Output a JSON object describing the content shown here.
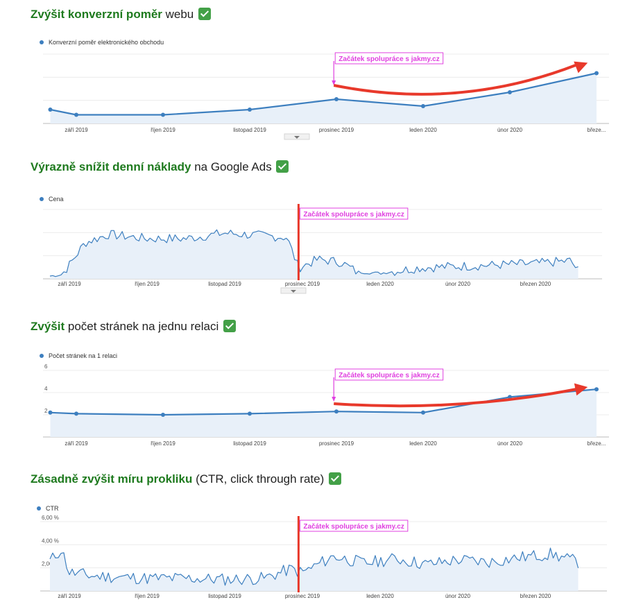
{
  "colors": {
    "heading_green": "#1e7a1e",
    "series_blue": "#3d7fbf",
    "area_fill": "#e8f0f9",
    "annotation_magenta": "#e040e0",
    "arrow_red": "#e8392b",
    "check_green": "#43a047"
  },
  "sections": [
    {
      "heading_bold": "Zvýšit konverzní poměr",
      "heading_rest": " webu",
      "check_icon": "check-mark-icon"
    },
    {
      "heading_bold": "Výrazně snížit denní náklady",
      "heading_rest": " na Google Ads",
      "check_icon": "check-mark-icon"
    },
    {
      "heading_bold": "Zvýšit",
      "heading_rest": " počet stránek na jednu relaci",
      "check_icon": "check-mark-icon"
    },
    {
      "heading_bold": "Zásadně zvýšit míru prokliku",
      "heading_rest": " (CTR, click through rate)",
      "check_icon": "check-mark-icon"
    }
  ],
  "chart_data": [
    {
      "type": "line",
      "legend": "Konverzní poměr elektronického obchodu",
      "legend_placement": "top-left",
      "x_labels": [
        "září 2019",
        "říjen 2019",
        "listopad 2019",
        "prosinec 2019",
        "leden 2020",
        "únor 2020",
        "březe..."
      ],
      "series": [
        {
          "name": "Konverzní poměr elektronického obchodu",
          "x": [
            -0.3,
            0,
            1,
            2,
            3,
            4,
            5,
            6
          ],
          "values": [
            0.8,
            0.5,
            0.5,
            0.8,
            1.4,
            1.0,
            1.8,
            2.9
          ]
        }
      ],
      "ylim": [
        0,
        4
      ],
      "y_ticks": [],
      "annotation": {
        "text": "Začátek spolupráce s jakmy.cz",
        "at_x": 2.97,
        "type": "arrow-down"
      },
      "trend_arrow": {
        "from_x": 2.97,
        "to_x": 5.85,
        "values": [
          2.2,
          1.8,
          3.5
        ]
      },
      "grid": true,
      "scroll_indicator": true
    },
    {
      "type": "area",
      "legend": "Cena",
      "legend_placement": "top-left",
      "x_labels": [
        "září 2019",
        "říjen 2019",
        "listopad 2019",
        "prosinec 2019",
        "leden 2020",
        "únor 2020",
        "březen 2020"
      ],
      "series": [
        {
          "name": "Cena",
          "noisy": true,
          "seed": 7,
          "x": [
            -0.25,
            -0.1,
            0.0,
            0.2,
            0.5,
            1.0,
            1.5,
            2.0,
            2.5,
            2.8,
            2.95,
            3.2,
            3.5,
            3.7,
            4.0,
            4.5,
            5.0,
            5.5,
            6.0,
            6.45,
            6.55
          ],
          "values": [
            0.2,
            0.3,
            1.0,
            2.6,
            3.2,
            2.9,
            2.9,
            3.3,
            3.1,
            3.0,
            0.8,
            1.4,
            1.2,
            0.5,
            0.4,
            0.8,
            0.9,
            1.0,
            1.1,
            1.3,
            0.6
          ],
          "noise": 0.35
        }
      ],
      "ylim": [
        0,
        5
      ],
      "y_ticks": [],
      "annotation": {
        "text": "Začátek spolupráce s jakmy.cz",
        "at_x": 2.95,
        "type": "red-line"
      },
      "grid": true,
      "scroll_indicator": true
    },
    {
      "type": "line",
      "legend": "Počet stránek na 1 relaci",
      "legend_placement": "top-left",
      "x_labels": [
        "září 2019",
        "říjen 2019",
        "listopad 2019",
        "prosinec 2019",
        "leden 2020",
        "únor 2020",
        "březe..."
      ],
      "series": [
        {
          "name": "Počet stránek na 1 relaci",
          "x": [
            -0.3,
            0,
            1,
            2,
            3,
            4,
            5,
            6
          ],
          "values": [
            2.2,
            2.1,
            2.0,
            2.1,
            2.3,
            2.2,
            3.6,
            4.3
          ]
        }
      ],
      "ylim": [
        0,
        6
      ],
      "y_ticks": [
        "2",
        "4",
        "6"
      ],
      "annotation": {
        "text": "Začátek spolupráce s jakmy.cz",
        "at_x": 2.97,
        "type": "arrow-down"
      },
      "trend_arrow": {
        "from_x": 2.97,
        "to_x": 5.85,
        "values": [
          3.0,
          3.0,
          4.5
        ]
      },
      "grid": true,
      "scroll_indicator": false
    },
    {
      "type": "area",
      "legend": "CTR",
      "legend_placement": "top-left",
      "x_labels": [
        "září 2019",
        "říjen 2019",
        "listopad 2019",
        "prosinec 2019",
        "leden 2020",
        "únor 2020",
        "březen 2020"
      ],
      "series": [
        {
          "name": "CTR",
          "noisy": true,
          "seed": 11,
          "x": [
            -0.25,
            -0.1,
            0.0,
            0.3,
            1.0,
            1.5,
            2.0,
            2.5,
            2.85,
            3.0,
            3.4,
            3.8,
            4.2,
            4.6,
            5.0,
            5.4,
            5.8,
            6.2,
            6.55
          ],
          "values": [
            2.6,
            3.6,
            1.6,
            1.3,
            1.1,
            1.1,
            1.0,
            1.1,
            1.9,
            1.6,
            3.0,
            2.4,
            2.8,
            2.3,
            2.7,
            2.5,
            2.9,
            3.2,
            2.5
          ],
          "noise": 0.55
        }
      ],
      "ylim": [
        0,
        6
      ],
      "y_ticks": [
        "2,00 %",
        "4,00 %",
        "6,00 %"
      ],
      "annotation": {
        "text": "Začátek spolupráce s jakmy.cz",
        "at_x": 2.95,
        "type": "red-line"
      },
      "grid": true,
      "scroll_indicator": false
    }
  ]
}
